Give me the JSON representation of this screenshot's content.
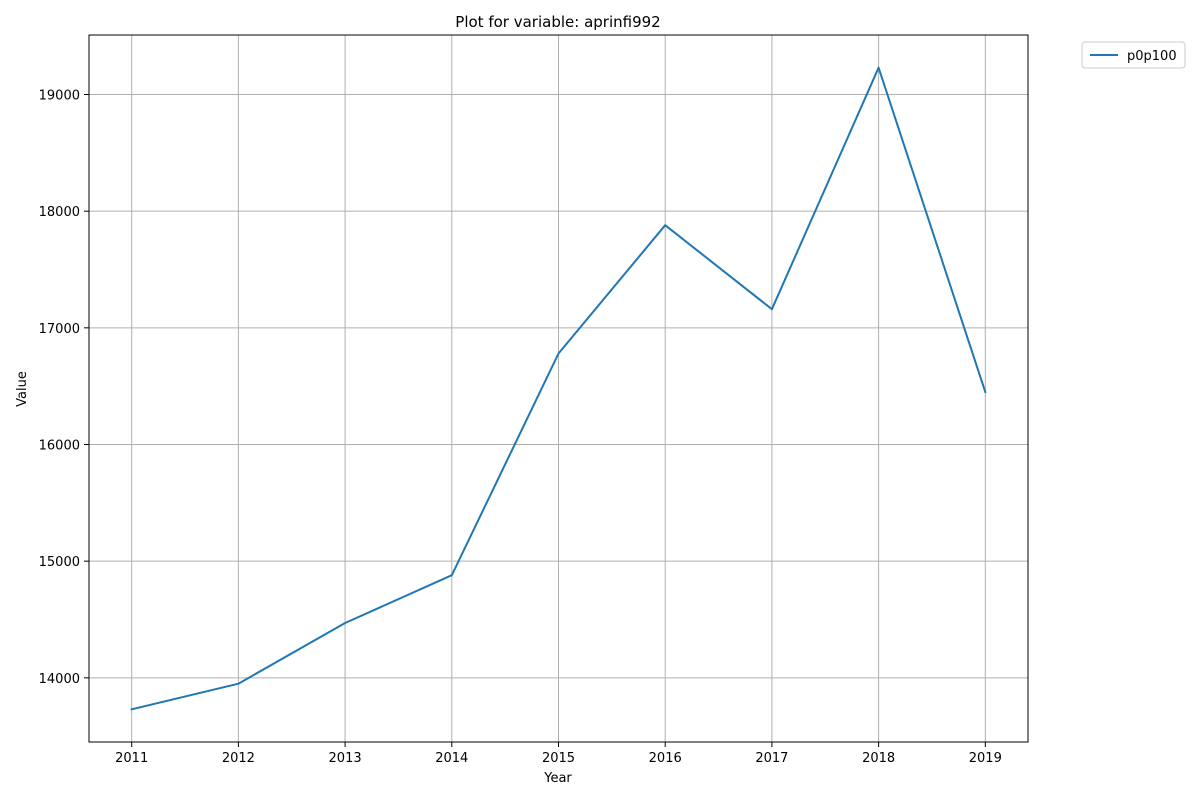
{
  "chart_data": {
    "type": "line",
    "title": "Plot for variable: aprinfi992",
    "xlabel": "Year",
    "ylabel": "Value",
    "x": [
      2011,
      2012,
      2013,
      2014,
      2015,
      2016,
      2017,
      2018,
      2019
    ],
    "series": [
      {
        "name": "p0p100",
        "color": "#1f77b4",
        "values": [
          13730,
          13950,
          14470,
          14880,
          16780,
          17880,
          17160,
          19230,
          16450
        ]
      }
    ],
    "xlim": [
      2010.6,
      2019.4
    ],
    "ylim": [
      13450,
      19510
    ],
    "xticks": [
      "2011",
      "2012",
      "2013",
      "2014",
      "2015",
      "2016",
      "2017",
      "2018",
      "2019"
    ],
    "yticks": [
      "14000",
      "15000",
      "16000",
      "17000",
      "18000",
      "19000"
    ],
    "grid": true,
    "legend_position": "outside-top-right"
  }
}
